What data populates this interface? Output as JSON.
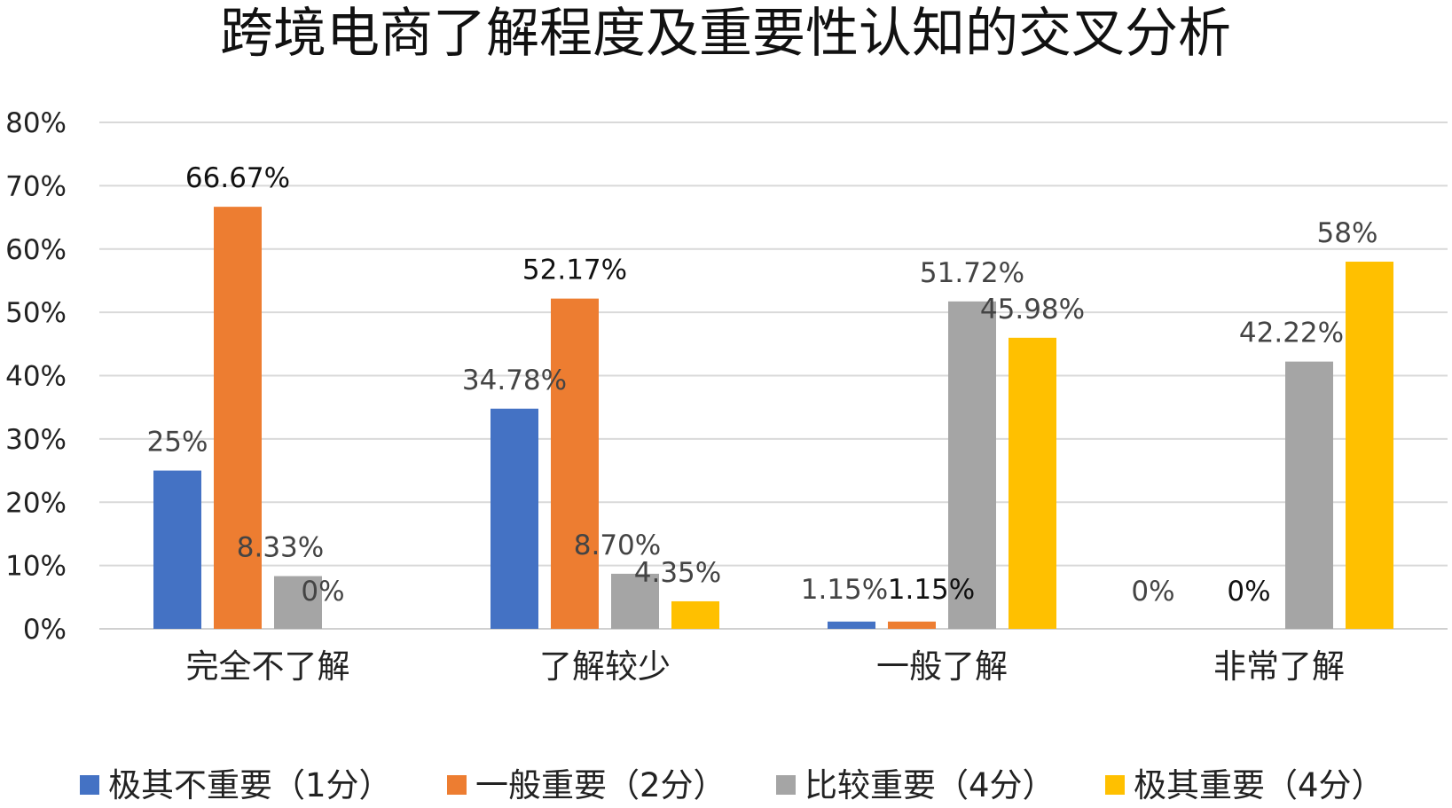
{
  "chart_data": {
    "type": "bar",
    "title": "跨境电商了解程度及重要性认知的交叉分析",
    "categories": [
      "完全不了解",
      "了解较少",
      "一般了解",
      "非常了解"
    ],
    "y_ticks": [
      "0%",
      "10%",
      "20%",
      "30%",
      "40%",
      "50%",
      "60%",
      "70%",
      "80%"
    ],
    "ylim": [
      0,
      80
    ],
    "grid": true,
    "legend_position": "bottom",
    "series": [
      {
        "name": "极其不重要（1分）",
        "color": "#4472C4",
        "values": [
          25,
          34.78,
          1.15,
          0
        ],
        "labels": [
          "25%",
          "34.78%",
          "1.15%",
          "0%"
        ],
        "label_color": "#444444"
      },
      {
        "name": "一般重要（2分）",
        "color": "#ED7D31",
        "values": [
          66.67,
          52.17,
          1.15,
          0
        ],
        "labels": [
          "66.67%",
          "52.17%",
          "1.15%",
          "0%"
        ],
        "label_color": "#111111"
      },
      {
        "name": "比较重要（4分）",
        "color": "#A5A5A5",
        "values": [
          8.33,
          8.7,
          51.72,
          42.22
        ],
        "labels": [
          "8.33%",
          "8.70%",
          "51.72%",
          "42.22%"
        ],
        "label_color": "#444444"
      },
      {
        "name": "极其重要（4分）",
        "color": "#FFC000",
        "values": [
          0,
          4.35,
          45.98,
          58
        ],
        "labels": [
          "0%",
          "4.35%",
          "45.98%",
          "58%"
        ],
        "label_color": "#444444"
      }
    ]
  }
}
